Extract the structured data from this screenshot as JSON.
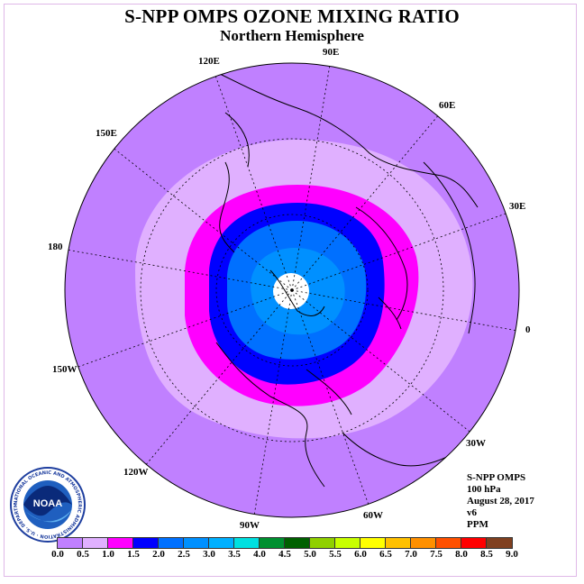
{
  "title": "S-NPP OMPS OZONE MIXING RATIO",
  "subtitle": "Northern Hemisphere",
  "longitude_labels": {
    "lon_90e": "90E",
    "lon_60e": "60E",
    "lon_30e": "30E",
    "lon_0": "0",
    "lon_30w": "30W",
    "lon_60w": "60W",
    "lon_90w": "90W",
    "lon_120w": "120W",
    "lon_150w": "150W",
    "lon_180": "180",
    "lon_150e": "150E",
    "lon_120e": "120E"
  },
  "info": {
    "instrument": "S-NPP OMPS",
    "level": "100 hPa",
    "date": "August 28, 2017",
    "version": "v6",
    "units": "PPM"
  },
  "logo": {
    "text": "NOAA",
    "ring_text": "NATIONAL OCEANIC AND ATMOSPHERIC ADMINISTRATION · U.S. DEPARTMENT OF COMMERCE"
  },
  "colorbar": {
    "colors": [
      "#c080ff",
      "#e0b0ff",
      "#ff00ff",
      "#0000ff",
      "#0070ff",
      "#0090ff",
      "#00b0ff",
      "#00e0e0",
      "#009030",
      "#006000",
      "#90d000",
      "#c8ff00",
      "#ffff00",
      "#ffc000",
      "#ff9000",
      "#ff5000",
      "#ff0000",
      "#804020"
    ],
    "tick_labels": [
      "0.0",
      "0.5",
      "1.0",
      "1.5",
      "2.0",
      "2.5",
      "3.0",
      "3.5",
      "4.0",
      "4.5",
      "5.0",
      "5.5",
      "6.0",
      "6.5",
      "7.0",
      "7.5",
      "8.0",
      "8.5",
      "9.0"
    ]
  },
  "field_colors": {
    "outer": "#c080ff",
    "band_light": "#e0b0ff",
    "band_magenta": "#ff00ff",
    "band_blue": "#0000ff",
    "band_mid": "#0070ff",
    "band_light_blue": "#0090ff",
    "pole_missing": "#ffffff"
  }
}
